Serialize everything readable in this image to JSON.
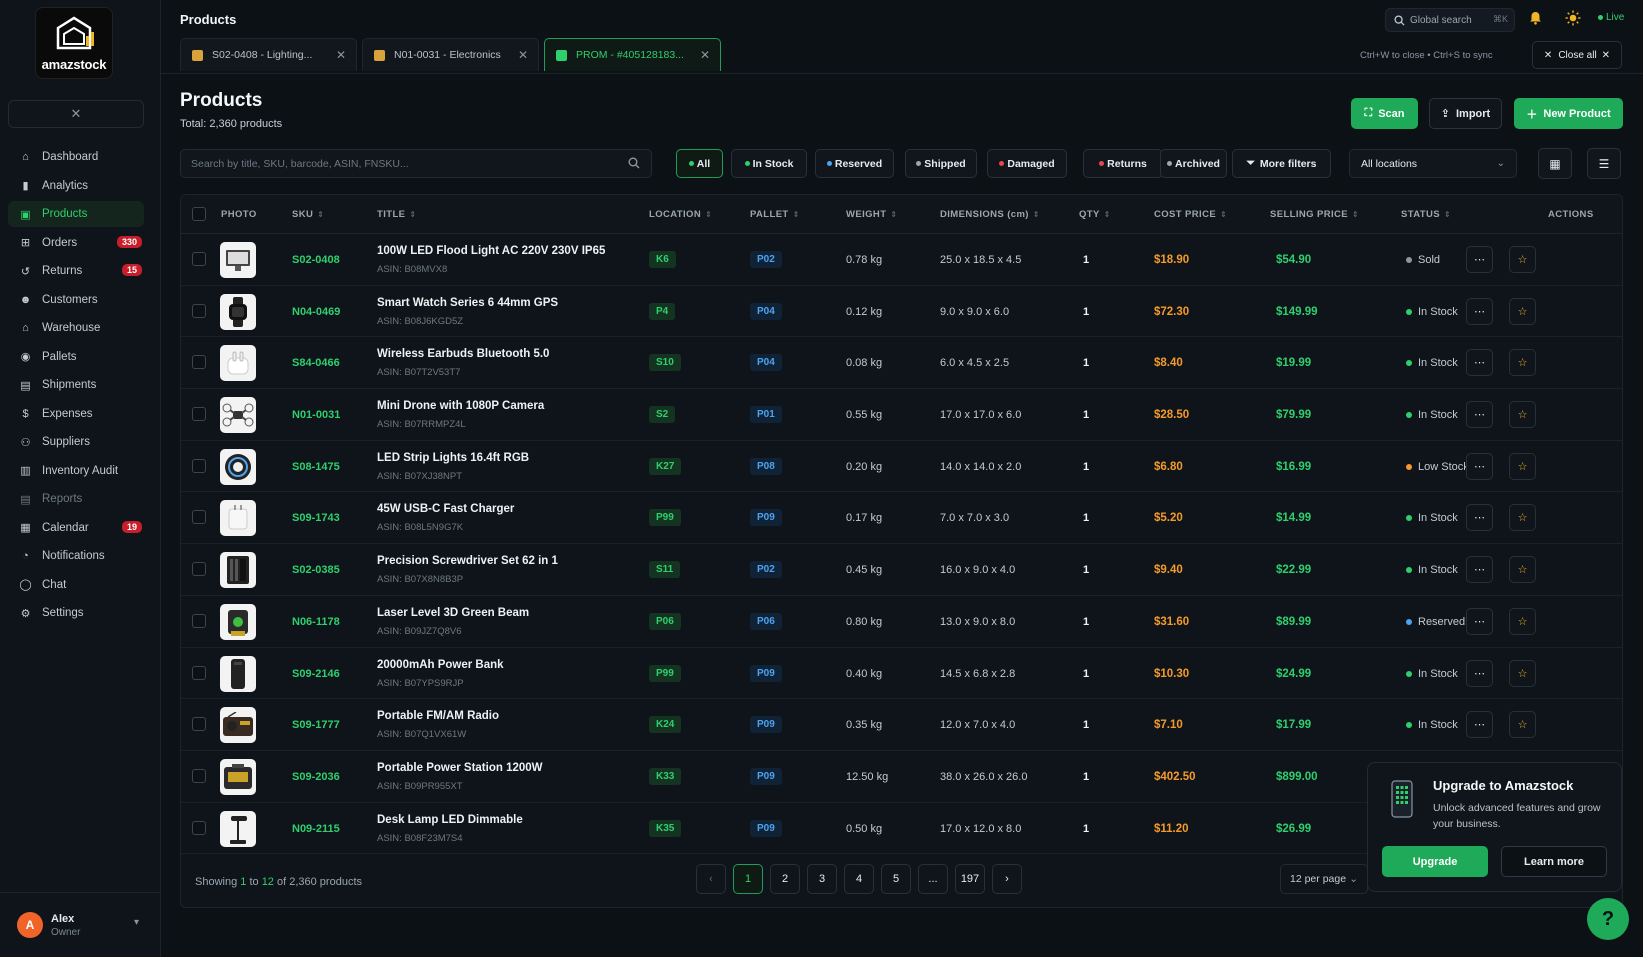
{
  "brand": {
    "name": "amazstock"
  },
  "sidebar": {
    "items": [
      {
        "label": "Dashboard",
        "icon": "home-icon",
        "active": false,
        "badge": ""
      },
      {
        "label": "Analytics",
        "icon": "bar-chart-icon",
        "active": false,
        "badge": ""
      },
      {
        "label": "Products",
        "icon": "box-icon",
        "active": true,
        "badge": ""
      },
      {
        "label": "Orders",
        "icon": "cart-icon",
        "active": false,
        "badge": "330"
      },
      {
        "label": "Returns",
        "icon": "return-icon",
        "active": false,
        "badge": "15"
      },
      {
        "label": "Customers",
        "icon": "users-icon",
        "active": false,
        "badge": ""
      },
      {
        "label": "Warehouse",
        "icon": "warehouse-icon",
        "active": false,
        "badge": ""
      },
      {
        "label": "Pallets",
        "icon": "pallet-icon",
        "active": false,
        "badge": ""
      },
      {
        "label": "Shipments",
        "icon": "truck-icon",
        "active": false,
        "badge": ""
      },
      {
        "label": "Expenses",
        "icon": "dollar-icon",
        "active": false,
        "badge": ""
      },
      {
        "label": "Suppliers",
        "icon": "supplier-icon",
        "active": false,
        "badge": ""
      },
      {
        "label": "Inventory Audit",
        "icon": "audit-icon",
        "active": false,
        "badge": ""
      },
      {
        "label": "Reports",
        "icon": "report-icon",
        "active": false,
        "badge": "",
        "dim": true
      },
      {
        "label": "Calendar",
        "icon": "calendar-icon",
        "active": false,
        "badge": "19"
      },
      {
        "label": "Notifications",
        "icon": "bell-icon",
        "active": false,
        "badge": ""
      },
      {
        "label": "Chat",
        "icon": "chat-icon",
        "active": false,
        "badge": ""
      },
      {
        "label": "Settings",
        "icon": "gear-icon",
        "active": false,
        "badge": ""
      }
    ],
    "user": {
      "initial": "A",
      "name": "Alex",
      "role": "Owner"
    }
  },
  "header": {
    "title": "Products",
    "global_search": "Global search",
    "shortcut": "⌘K",
    "live": "Live"
  },
  "tabs": [
    {
      "label": "S02-0408 - Lighting...",
      "active": false
    },
    {
      "label": "N01-0031 - Electronics",
      "active": false
    },
    {
      "label": "PROM - #405128183...",
      "active": true
    }
  ],
  "tab_hint": "Ctrl+W to close • Ctrl+S to sync",
  "close_all": "Close all",
  "page": {
    "title": "Products",
    "subtitle": "Total: 2,360 products",
    "scan": "Scan",
    "import": "Import",
    "new_product": "New Product"
  },
  "filters": {
    "search_placeholder": "Search by title, SKU, barcode, ASIN, FNSKU...",
    "chips": [
      {
        "label": "All",
        "color": "#2fcf6e",
        "active": true
      },
      {
        "label": "In Stock",
        "color": "#2fcf6e",
        "active": false
      },
      {
        "label": "Reserved",
        "color": "#4ea3f0",
        "active": false
      },
      {
        "label": "Shipped",
        "color": "#9aa6b1",
        "active": false
      },
      {
        "label": "Damaged",
        "color": "#e5484d",
        "active": false
      },
      {
        "label": "Returns",
        "color": "#e5484d",
        "active": false
      },
      {
        "label": "Archived",
        "color": "#9aa6b1",
        "active": false
      }
    ],
    "more_filters": "More filters",
    "location": "All locations"
  },
  "table": {
    "columns": [
      "PHOTO",
      "SKU",
      "TITLE",
      "LOCATION",
      "PALLET",
      "WEIGHT",
      "DIMENSIONS (cm)",
      "QTY",
      "COST PRICE",
      "SELLING PRICE",
      "STATUS",
      "ACTIONS"
    ],
    "rows": [
      {
        "sku": "S02-0408",
        "title": "100W LED Flood Light AC 220V 230V IP65",
        "asin": "ASIN: B08MVX8",
        "location": "K6",
        "pallet": "P02",
        "weight": "0.78 kg",
        "dims": "25.0 x 18.5 x 4.5",
        "qty": "1",
        "cost": "$18.90",
        "sell": "$54.90",
        "status": "Sold",
        "status_color": "#8a96a3",
        "photo": "floodlight"
      },
      {
        "sku": "N04-0469",
        "title": "Smart Watch Series 6 44mm GPS",
        "asin": "ASIN: B08J6KGD5Z",
        "location": "P4",
        "pallet": "P04",
        "weight": "0.12 kg",
        "dims": "9.0 x 9.0 x 6.0",
        "qty": "1",
        "cost": "$72.30",
        "sell": "$149.99",
        "status": "In Stock",
        "status_color": "#2fcf6e",
        "photo": "watch"
      },
      {
        "sku": "S84-0466",
        "title": "Wireless Earbuds Bluetooth 5.0",
        "asin": "ASIN: B07T2V53T7",
        "location": "S10",
        "pallet": "P04",
        "weight": "0.08 kg",
        "dims": "6.0 x 4.5 x 2.5",
        "qty": "1",
        "cost": "$8.40",
        "sell": "$19.99",
        "status": "In Stock",
        "status_color": "#2fcf6e",
        "photo": "earbuds"
      },
      {
        "sku": "N01-0031",
        "title": "Mini Drone with 1080P Camera",
        "asin": "ASIN: B07RRMPZ4L",
        "location": "S2",
        "pallet": "P01",
        "weight": "0.55 kg",
        "dims": "17.0 x 17.0 x 6.0",
        "qty": "1",
        "cost": "$28.50",
        "sell": "$79.99",
        "status": "In Stock",
        "status_color": "#2fcf6e",
        "photo": "drone"
      },
      {
        "sku": "S08-1475",
        "title": "LED Strip Lights 16.4ft RGB",
        "asin": "ASIN: B07XJ38NPT",
        "location": "K27",
        "pallet": "P08",
        "weight": "0.20 kg",
        "dims": "14.0 x 14.0 x 2.0",
        "qty": "1",
        "cost": "$6.80",
        "sell": "$16.99",
        "status": "Low Stock",
        "status_color": "#f59a2a",
        "photo": "strip"
      },
      {
        "sku": "S09-1743",
        "title": "45W USB-C Fast Charger",
        "asin": "ASIN: B08L5N9G7K",
        "location": "P99",
        "pallet": "P09",
        "weight": "0.17 kg",
        "dims": "7.0 x 7.0 x 3.0",
        "qty": "1",
        "cost": "$5.20",
        "sell": "$14.99",
        "status": "In Stock",
        "status_color": "#2fcf6e",
        "photo": "charger"
      },
      {
        "sku": "S02-0385",
        "title": "Precision Screwdriver Set 62 in 1",
        "asin": "ASIN: B07X8N8B3P",
        "location": "S11",
        "pallet": "P02",
        "weight": "0.45 kg",
        "dims": "16.0 x 9.0 x 4.0",
        "qty": "1",
        "cost": "$9.40",
        "sell": "$22.99",
        "status": "In Stock",
        "status_color": "#2fcf6e",
        "photo": "screwdriver"
      },
      {
        "sku": "N06-1178",
        "title": "Laser Level 3D Green Beam",
        "asin": "ASIN: B09JZ7Q8V6",
        "location": "P06",
        "pallet": "P06",
        "weight": "0.80 kg",
        "dims": "13.0 x 9.0 x 8.0",
        "qty": "1",
        "cost": "$31.60",
        "sell": "$89.99",
        "status": "Reserved",
        "status_color": "#4ea3f0",
        "photo": "laser"
      },
      {
        "sku": "S09-2146",
        "title": "20000mAh Power Bank",
        "asin": "ASIN: B07YPS9RJP",
        "location": "P99",
        "pallet": "P09",
        "weight": "0.40 kg",
        "dims": "14.5 x 6.8 x 2.8",
        "qty": "1",
        "cost": "$10.30",
        "sell": "$24.99",
        "status": "In Stock",
        "status_color": "#2fcf6e",
        "photo": "powerbank"
      },
      {
        "sku": "S09-1777",
        "title": "Portable FM/AM Radio",
        "asin": "ASIN: B07Q1VX61W",
        "location": "K24",
        "pallet": "P09",
        "weight": "0.35 kg",
        "dims": "12.0 x 7.0 x 4.0",
        "qty": "1",
        "cost": "$7.10",
        "sell": "$17.99",
        "status": "In Stock",
        "status_color": "#2fcf6e",
        "photo": "radio"
      },
      {
        "sku": "S09-2036",
        "title": "Portable Power Station 1200W",
        "asin": "ASIN: B09PR955XT",
        "location": "K33",
        "pallet": "P09",
        "weight": "12.50 kg",
        "dims": "38.0 x 26.0 x 26.0",
        "qty": "1",
        "cost": "$402.50",
        "sell": "$899.00",
        "status": "",
        "status_color": "",
        "photo": "station"
      },
      {
        "sku": "N09-2115",
        "title": "Desk Lamp LED Dimmable",
        "asin": "ASIN: B08F23M7S4",
        "location": "K35",
        "pallet": "P09",
        "weight": "0.50 kg",
        "dims": "17.0 x 12.0 x 8.0",
        "qty": "1",
        "cost": "$11.20",
        "sell": "$26.99",
        "status": "",
        "status_color": "",
        "photo": "lamp"
      }
    ]
  },
  "footer": {
    "showing_prefix": "Showing ",
    "from": "1",
    "to_word": " to ",
    "to": "12",
    "suffix": " of 2,360 products",
    "pages": [
      "1",
      "2",
      "3",
      "4",
      "5",
      "...",
      "197"
    ],
    "per_page": "12 per page"
  },
  "upgrade": {
    "title": "Upgrade to Amazstock",
    "desc": "Unlock advanced features and grow your business.",
    "upgrade_btn": "Upgrade",
    "learn_btn": "Learn more"
  },
  "help": "?"
}
